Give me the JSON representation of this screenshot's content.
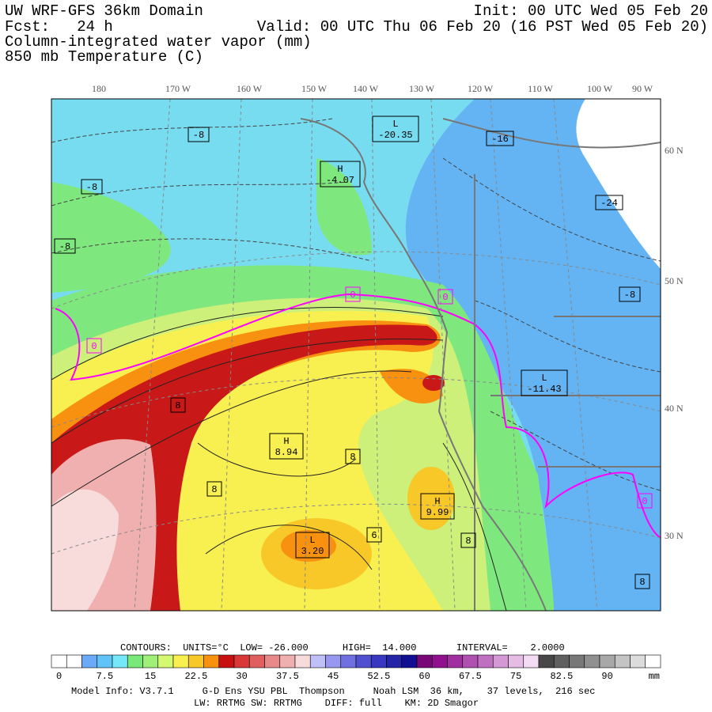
{
  "header": {
    "line1_left": "UW WRF-GFS 36km Domain",
    "line1_right": "Init: 00 UTC Wed 05 Feb 20",
    "line2_left": "Fcst:   24 h",
    "line2_right": "Valid: 00 UTC Thu 06 Feb 20 (16 PST Wed 05 Feb 20)",
    "line3": "Column-integrated water vapor (mm)",
    "line4": "850 mb Temperature (C)"
  },
  "longitudes": [
    "180",
    "170 W",
    "160 W",
    "150 W",
    "140 W",
    "130 W",
    "120 W",
    "110 W",
    "100 W",
    "90 W"
  ],
  "latitudes": [
    "60 N",
    "50 N",
    "40 N",
    "30 N"
  ],
  "contour_labels": [
    {
      "lines": [
        "-8"
      ]
    },
    {
      "lines": [
        "-8"
      ]
    },
    {
      "lines": [
        "-8"
      ]
    },
    {
      "lines": [
        "L",
        "-20.35"
      ]
    },
    {
      "lines": [
        "-16"
      ]
    },
    {
      "lines": [
        "H",
        "-4.07"
      ]
    },
    {
      "lines": [
        "-24"
      ]
    },
    {
      "lines": [
        "-8"
      ]
    },
    {
      "lines": [
        "0"
      ]
    },
    {
      "lines": [
        "0"
      ]
    },
    {
      "lines": [
        "0"
      ]
    },
    {
      "lines": [
        "L",
        "-11.43"
      ]
    },
    {
      "lines": [
        "8"
      ]
    },
    {
      "lines": [
        "H",
        "8.94"
      ]
    },
    {
      "lines": [
        "8"
      ]
    },
    {
      "lines": [
        "8"
      ]
    },
    {
      "lines": [
        "H",
        "9.99"
      ]
    },
    {
      "lines": [
        "L",
        "3.20"
      ]
    },
    {
      "lines": [
        "6"
      ]
    },
    {
      "lines": [
        "8"
      ]
    },
    {
      "lines": [
        "8"
      ]
    },
    {
      "lines": [
        "0"
      ]
    }
  ],
  "contour_info": "CONTOURS:  UNITS=°C  LOW= -26.000      HIGH=  14.000       INTERVAL=    2.0000",
  "colorbar": {
    "colors": [
      "#ffffff",
      "#ffffff",
      "#6aaaf8",
      "#60c4f8",
      "#74e8f8",
      "#78e878",
      "#a0f078",
      "#d4f870",
      "#f8f050",
      "#f8c828",
      "#f89010",
      "#c81010",
      "#d83838",
      "#e06060",
      "#e88888",
      "#f0b0b0",
      "#f8dcdc",
      "#c0c0f8",
      "#9898f0",
      "#7070e0",
      "#5050d0",
      "#3838c0",
      "#2424a8",
      "#101090",
      "#780878",
      "#901090",
      "#a030a0",
      "#b050b0",
      "#c070c0",
      "#d498d4",
      "#e4bce4",
      "#f4dcf4",
      "#484848",
      "#606060",
      "#787878",
      "#909090",
      "#a8a8a8",
      "#c4c4c4",
      "#dcdcdc",
      "#ffffff"
    ],
    "labels": [
      "0",
      "7.5",
      "15",
      "22.5",
      "30",
      "37.5",
      "45",
      "52.5",
      "60",
      "67.5",
      "75",
      "82.5",
      "90"
    ],
    "unit": "mm"
  },
  "footer": {
    "line1": "Model Info: V3.7.1     G-D Ens YSU PBL  Thompson     Noah LSM  36 km,    37 levels,  216 sec",
    "line2": "LW: RRTMG SW: RRTMG    DIFF: full    KM: 2D Smagor"
  }
}
